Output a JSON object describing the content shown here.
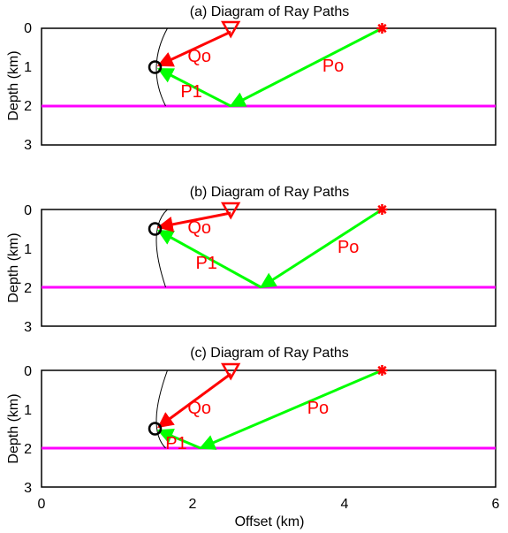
{
  "panels": [
    {
      "title": "(a) Diagram of Ray Paths",
      "ylabel": "Depth (km)",
      "y_ticks": [
        "0",
        "1",
        "2",
        "3"
      ],
      "source": {
        "x": 4.5,
        "z": 0.0
      },
      "receiver": {
        "x": 2.5,
        "z": 0.0
      },
      "point": {
        "x": 1.5,
        "z": 1.0
      },
      "reflection": {
        "x": 2.5,
        "z": 2.0
      },
      "labels": {
        "po": "Po",
        "p1": "P1",
        "qo": "Qo"
      }
    },
    {
      "title": "(b) Diagram of Ray Paths",
      "ylabel": "Depth (km)",
      "y_ticks": [
        "0",
        "1",
        "2",
        "3"
      ],
      "source": {
        "x": 4.5,
        "z": 0.0
      },
      "receiver": {
        "x": 2.5,
        "z": 0.0
      },
      "point": {
        "x": 1.5,
        "z": 0.5
      },
      "reflection": {
        "x": 2.9,
        "z": 2.0
      },
      "labels": {
        "po": "Po",
        "p1": "P1",
        "qo": "Qo"
      }
    },
    {
      "title": "(c) Diagram of Ray Paths",
      "ylabel": "Depth (km)",
      "y_ticks": [
        "0",
        "1",
        "2",
        "3"
      ],
      "source": {
        "x": 4.5,
        "z": 0.0
      },
      "receiver": {
        "x": 2.5,
        "z": 0.0
      },
      "point": {
        "x": 1.5,
        "z": 1.5
      },
      "reflection": {
        "x": 2.1,
        "z": 2.0
      },
      "labels": {
        "po": "Po",
        "p1": "P1",
        "qo": "Qo"
      }
    }
  ],
  "x_ticks": [
    "0",
    "2",
    "4",
    "6"
  ],
  "xlabel": "Offset (km)",
  "x_range": [
    0,
    6
  ],
  "z_range": [
    0,
    3
  ],
  "reflector_depth": 2.0,
  "colors": {
    "reflector": "#ff00ff",
    "p_rays": "#00ff00",
    "q_ray": "#ff0000",
    "labels": "#ff0000",
    "point_marker": "#000000",
    "frame": "#000000"
  }
}
